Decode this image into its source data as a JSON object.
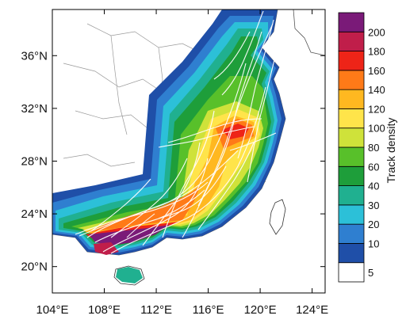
{
  "map": {
    "lon_ticks": [
      "104°E",
      "108°E",
      "112°E",
      "116°E",
      "120°E",
      "124°E"
    ],
    "lat_ticks": [
      "36°N",
      "32°N",
      "28°N",
      "24°N",
      "20°N"
    ],
    "lon_range": [
      104,
      125
    ],
    "lat_range": [
      18,
      39.5
    ],
    "land_color": "#ffffff",
    "border_color": "#888888",
    "track_color": "#ffffff"
  },
  "colorbar": {
    "label": "Track density",
    "levels": [
      "5",
      "10",
      "20",
      "30",
      "40",
      "60",
      "80",
      "100",
      "120",
      "140",
      "160",
      "180",
      "200"
    ],
    "colors": [
      "#ffffff",
      "#1f4fa8",
      "#2f7fd0",
      "#2cc0d8",
      "#20b090",
      "#1e9e3a",
      "#58c02a",
      "#cfe23a",
      "#ffe44a",
      "#ffb820",
      "#ff7a18",
      "#ee2418",
      "#c01e4a",
      "#7a1a78"
    ]
  }
}
